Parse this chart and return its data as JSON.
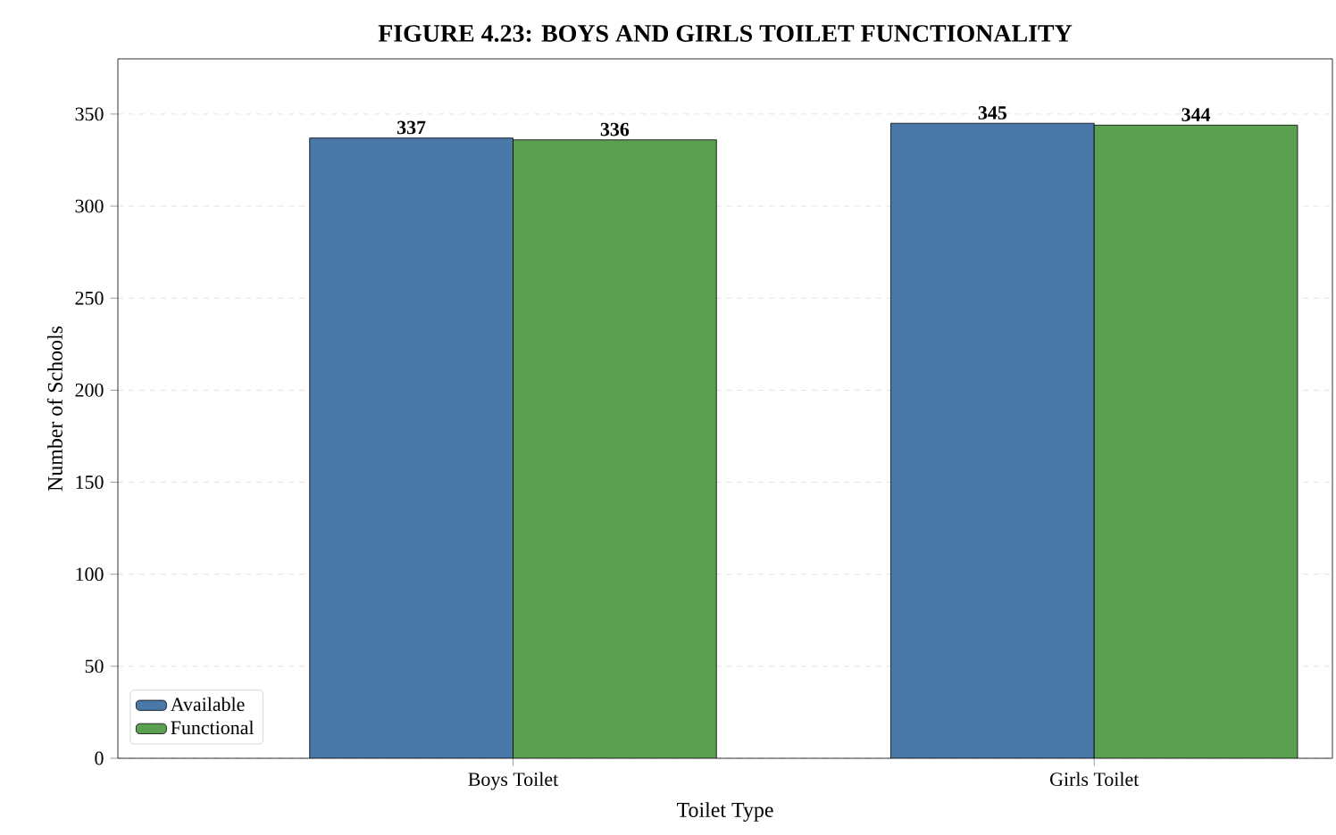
{
  "chart_data": {
    "type": "bar",
    "title": "FIGURE 4.23: BOYS AND GIRLS TOILET FUNCTIONALITY",
    "xlabel": "Toilet Type",
    "ylabel": "Number of Schools",
    "categories": [
      "Boys Toilet",
      "Girls Toilet"
    ],
    "series": [
      {
        "name": "Available",
        "color": "#4a78a8",
        "values": [
          337,
          345
        ]
      },
      {
        "name": "Functional",
        "color": "#5aa050",
        "values": [
          336,
          344
        ]
      }
    ],
    "ylim": [
      0,
      380
    ],
    "yticks": [
      0,
      50,
      100,
      150,
      200,
      250,
      300,
      350
    ],
    "grid": "y",
    "legend": "bottom left",
    "data_labels": true
  }
}
